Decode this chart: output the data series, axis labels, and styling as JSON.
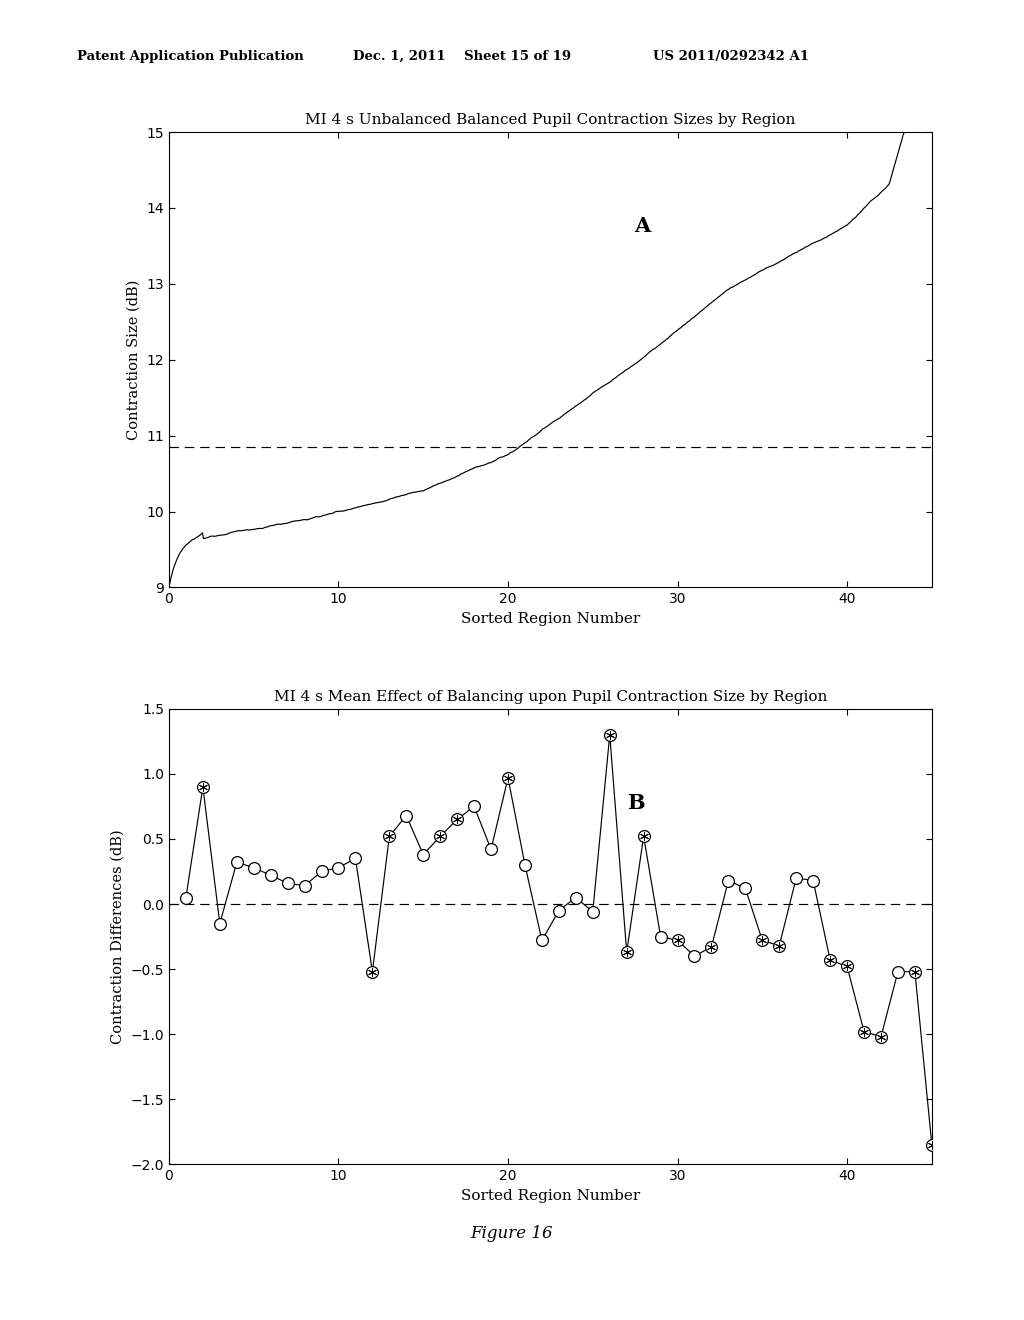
{
  "title_a": "MI 4 s Unbalanced Balanced Pupil Contraction Sizes by Region",
  "title_b": "MI 4 s Mean Effect of Balancing upon Pupil Contraction Size by Region",
  "xlabel": "Sorted Region Number",
  "ylabel_a": "Contraction Size (dB)",
  "ylabel_b": "Contraction Differences (dB)",
  "label_a": "A",
  "label_b": "B",
  "figure_label": "Figure 16",
  "header_left": "Patent Application Publication",
  "header_mid": "Dec. 1, 2011    Sheet 15 of 19",
  "header_right": "US 2011/0292342 A1",
  "plot_a": {
    "xlim": [
      0,
      45
    ],
    "ylim": [
      9,
      15
    ],
    "yticks": [
      9,
      10,
      11,
      12,
      13,
      14,
      15
    ],
    "xticks": [
      0,
      10,
      20,
      30,
      40
    ],
    "dashed_y": 10.85
  },
  "plot_b": {
    "xlim": [
      0,
      45
    ],
    "ylim": [
      -2,
      1.5
    ],
    "yticks": [
      -2,
      -1.5,
      -1,
      -0.5,
      0,
      0.5,
      1,
      1.5
    ],
    "xticks": [
      0,
      10,
      20,
      30,
      40
    ],
    "dashed_y": 0
  },
  "background_color": "#ffffff",
  "line_color": "#000000",
  "x_b": [
    1,
    2,
    3,
    4,
    5,
    6,
    7,
    8,
    9,
    10,
    11,
    12,
    13,
    14,
    15,
    16,
    17,
    18,
    19,
    20,
    21,
    22,
    23,
    24,
    25,
    26,
    27,
    28,
    29,
    30,
    31,
    32,
    33,
    34,
    35,
    36,
    37,
    38,
    39,
    40,
    41,
    42,
    43,
    44,
    45
  ],
  "y_b": [
    0.05,
    0.9,
    -0.15,
    0.32,
    0.28,
    0.22,
    0.16,
    0.14,
    0.25,
    0.28,
    0.35,
    -0.52,
    0.52,
    0.68,
    0.38,
    0.52,
    0.65,
    0.75,
    0.42,
    0.97,
    0.3,
    -0.28,
    -0.05,
    0.05,
    -0.06,
    1.3,
    -0.37,
    0.52,
    -0.25,
    -0.28,
    -0.4,
    -0.33,
    0.18,
    0.12,
    -0.28,
    -0.32,
    0.2,
    0.18,
    -0.43,
    -0.48,
    -0.98,
    -1.02,
    -0.52,
    -0.52,
    -1.85
  ],
  "filled_b": [
    0,
    1,
    0,
    0,
    0,
    0,
    0,
    0,
    0,
    0,
    0,
    1,
    1,
    0,
    0,
    1,
    1,
    0,
    0,
    1,
    0,
    0,
    0,
    0,
    0,
    1,
    1,
    1,
    0,
    1,
    0,
    1,
    0,
    0,
    1,
    1,
    0,
    0,
    1,
    1,
    1,
    1,
    0,
    1,
    1
  ]
}
